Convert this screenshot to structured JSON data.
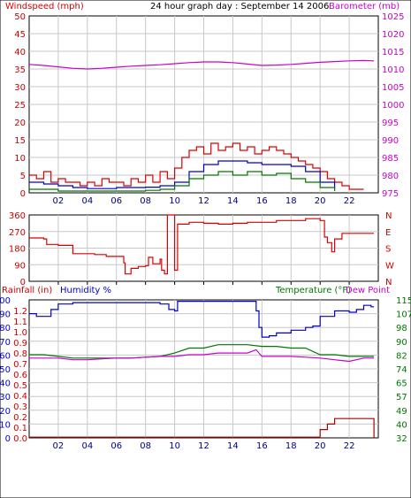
{
  "title": "24 hour graph day : September 14 2006",
  "colors": {
    "red": "#dd0000",
    "blue": "#0000cc",
    "green": "#007700",
    "magenta": "#cc00cc",
    "darkred": "#aa0000",
    "grid": "#c8c8c8",
    "border": "#000000"
  },
  "chart_data": [
    {
      "type": "line",
      "name": "wind-barometer",
      "left_label": "Windspeed (mph)",
      "right_label": "Barometer (mb)",
      "left_ticks": [
        0,
        5,
        10,
        15,
        20,
        25,
        30,
        35,
        40,
        45,
        50
      ],
      "right_ticks": [
        975,
        980,
        985,
        990,
        995,
        1000,
        1005,
        1010,
        1015,
        1020,
        1025
      ],
      "ylim_left": [
        0,
        50
      ],
      "ylim_right": [
        975,
        1025
      ],
      "xlim": [
        0,
        24
      ],
      "x_ticks": [
        "02",
        "04",
        "06",
        "08",
        "10",
        "12",
        "14",
        "16",
        "18",
        "20",
        "22"
      ],
      "gridlines": true,
      "series": [
        {
          "axis": "right",
          "color": "magenta",
          "x": [
            0,
            1,
            2,
            3,
            4,
            5,
            6,
            7,
            8,
            9,
            10,
            11,
            12,
            13,
            14,
            15,
            16,
            17,
            18,
            19,
            20,
            21,
            22,
            23,
            23.7
          ],
          "values": [
            1011.3,
            1011.0,
            1010.6,
            1010.2,
            1010.0,
            1010.2,
            1010.5,
            1010.8,
            1011.0,
            1011.2,
            1011.5,
            1011.8,
            1012.0,
            1012.0,
            1011.8,
            1011.4,
            1011.0,
            1011.1,
            1011.3,
            1011.6,
            1011.9,
            1012.1,
            1012.3,
            1012.4,
            1012.3
          ]
        },
        {
          "axis": "left",
          "color": "red",
          "x": [
            0,
            0.5,
            1,
            1.5,
            2,
            2.5,
            3,
            3.5,
            4,
            4.5,
            5,
            5.5,
            6,
            6.5,
            7,
            7.5,
            8,
            8.5,
            9,
            9.5,
            10,
            10.5,
            11,
            11.5,
            12,
            12.5,
            13,
            13.5,
            14,
            14.5,
            15,
            15.5,
            16,
            16.5,
            17,
            17.5,
            18,
            18.5,
            19,
            19.5,
            20,
            20.5,
            21,
            21.5,
            22,
            22.5,
            23
          ],
          "values": [
            5,
            4,
            6,
            3,
            4,
            3,
            3,
            2,
            3,
            2,
            4,
            3,
            3,
            2,
            4,
            3,
            5,
            3,
            6,
            4,
            7,
            10,
            12,
            13,
            11,
            14,
            12,
            13,
            14,
            12,
            13,
            11,
            12,
            13,
            12,
            11,
            10,
            9,
            8,
            7,
            6,
            4,
            3,
            2,
            1,
            1,
            1
          ]
        },
        {
          "axis": "left",
          "color": "blue",
          "x": [
            0,
            1,
            2,
            3,
            4,
            5,
            6,
            7,
            8,
            9,
            10,
            11,
            12,
            13,
            14,
            15,
            16,
            17,
            18,
            19,
            20,
            21
          ],
          "values": [
            3,
            2.5,
            2,
            1.5,
            1.2,
            1.2,
            1.5,
            1.5,
            1.6,
            2,
            3,
            6,
            8,
            9,
            9,
            8.5,
            8,
            8,
            7.5,
            6,
            3,
            1
          ]
        },
        {
          "axis": "left",
          "color": "green",
          "x": [
            0,
            1,
            2,
            3,
            4,
            5,
            6,
            7,
            8,
            9,
            10,
            11,
            12,
            13,
            14,
            15,
            16,
            17,
            18,
            19,
            20,
            21
          ],
          "values": [
            1,
            1,
            0.5,
            0.5,
            0.5,
            0.5,
            0.5,
            0.5,
            0.7,
            1,
            2,
            4,
            5,
            6,
            5,
            6,
            5,
            5.5,
            4,
            3,
            1.5,
            0.5
          ]
        }
      ]
    },
    {
      "type": "line",
      "name": "wind-direction",
      "left_ticks": [
        0,
        90,
        180,
        270,
        360
      ],
      "right_ticks": [
        "N",
        "E",
        "S",
        "W",
        "N"
      ],
      "ylim": [
        0,
        360
      ],
      "xlim": [
        0,
        24
      ],
      "gridlines": true,
      "series": [
        {
          "color": "red",
          "x": [
            0,
            1,
            1.2,
            2,
            3,
            4.5,
            5.3,
            6.5,
            6.6,
            7,
            7.5,
            8,
            8.2,
            8.5,
            9,
            9.1,
            9.3,
            9.5,
            10,
            10.2,
            11,
            12,
            13,
            14,
            15,
            16,
            17,
            18,
            19,
            20,
            20.3,
            20.5,
            20.8,
            21,
            21.5,
            23.7
          ],
          "values": [
            235,
            230,
            200,
            195,
            150,
            145,
            135,
            100,
            40,
            70,
            80,
            85,
            130,
            95,
            120,
            60,
            40,
            360,
            60,
            310,
            320,
            315,
            310,
            315,
            320,
            320,
            330,
            330,
            340,
            330,
            240,
            210,
            160,
            230,
            260,
            260
          ]
        }
      ]
    },
    {
      "type": "line",
      "name": "rain-humidity-temperature",
      "left_label_1": "Rainfall (in)",
      "left_label_2": "Humidity %",
      "right_label_1": "Temperature (°F)",
      "right_label_2": "Dew Point",
      "rain_ticks": [
        "0.0",
        "0.1",
        "0.2",
        "0.3",
        "0.4",
        "0.5",
        "0.6",
        "0.7",
        "0.8",
        "0.9",
        "1.0",
        "1.1",
        "1.2"
      ],
      "humidity_ticks": [
        0,
        10,
        20,
        30,
        40,
        50,
        60,
        70,
        80,
        90,
        100
      ],
      "temp_ticks": [
        32,
        40,
        49,
        57,
        65,
        74,
        82,
        90,
        98,
        107,
        115
      ],
      "ylim_humidity": [
        0,
        100
      ],
      "ylim_temp": [
        32,
        115
      ],
      "xlim": [
        0,
        24
      ],
      "x_ticks": [
        "02",
        "04",
        "06",
        "08",
        "10",
        "12",
        "14",
        "16",
        "18",
        "20",
        "22"
      ],
      "gridlines": true,
      "series": [
        {
          "axis": "humidity",
          "color": "blue",
          "x": [
            0,
            0.5,
            1,
            1.5,
            2,
            3,
            4,
            5,
            6,
            7,
            8,
            9,
            9.6,
            10,
            10.2,
            12,
            14,
            15.5,
            15.6,
            15.8,
            16,
            16.5,
            17,
            18,
            19,
            19.5,
            20,
            21,
            22,
            22.5,
            23,
            23.5,
            23.7
          ],
          "values": [
            90,
            88,
            88,
            93,
            97,
            98,
            98,
            98,
            98,
            98,
            98,
            97,
            93,
            92,
            99,
            99,
            99,
            99,
            92,
            80,
            73,
            74,
            76,
            78,
            80,
            81,
            88,
            92,
            91,
            93,
            96,
            95,
            95
          ]
        },
        {
          "axis": "temp",
          "color": "green",
          "x": [
            0,
            1,
            2,
            3,
            4,
            5,
            6,
            7,
            8,
            9,
            10,
            11,
            12,
            13,
            14,
            15,
            16,
            17,
            18,
            19,
            20,
            21,
            22,
            23,
            23.7
          ],
          "values": [
            82,
            82,
            81,
            80,
            80,
            80,
            80,
            80,
            80.5,
            81,
            83,
            86,
            86,
            88,
            88,
            88,
            87,
            87,
            86,
            86,
            82,
            82,
            81,
            81,
            81
          ]
        },
        {
          "axis": "temp",
          "color": "magenta",
          "x": [
            0,
            1,
            2,
            3,
            4,
            5,
            6,
            7,
            8,
            9,
            10,
            11,
            12,
            13,
            14,
            15,
            15.6,
            16,
            17,
            18,
            19,
            20,
            21,
            22,
            23,
            23.7
          ],
          "values": [
            80,
            80,
            80,
            79,
            79,
            79.5,
            80,
            80,
            80.5,
            81,
            81,
            82,
            82,
            83,
            83,
            83,
            85,
            81,
            81,
            81,
            80.5,
            80,
            79,
            78,
            80,
            80
          ]
        },
        {
          "axis": "humidity",
          "color": "darkred",
          "x": [
            0,
            19.6,
            20,
            20.5,
            21,
            23.7,
            23.7
          ],
          "values": [
            0.5,
            0.5,
            6,
            10,
            14,
            14,
            0
          ]
        }
      ]
    }
  ]
}
